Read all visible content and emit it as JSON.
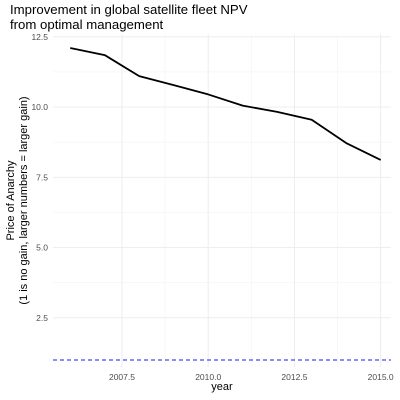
{
  "chart_data": {
    "type": "line",
    "title_lines": [
      "Improvement in global satellite fleet NPV",
      "from optimal management"
    ],
    "xlabel": "year",
    "ylabel_lines": [
      "Price of Anarchy",
      "(1 is no gain, larger numbers = larger gain)"
    ],
    "xlim": [
      2005.5,
      2015.3
    ],
    "ylim": [
      0.75,
      12.6
    ],
    "x_ticks": [
      2007.5,
      2010.0,
      2012.5,
      2015.0
    ],
    "x_tick_labels": [
      "2007.5",
      "2010.0",
      "2012.5",
      "2015.0"
    ],
    "y_ticks": [
      2.5,
      5.0,
      7.5,
      10.0,
      12.5
    ],
    "y_tick_labels": [
      "2.5",
      "5.0",
      "7.5",
      "10.0",
      "12.5"
    ],
    "grid": true,
    "series": [
      {
        "x": [
          2006,
          2007,
          2008,
          2009,
          2010,
          2011,
          2012,
          2013,
          2014,
          2015
        ],
        "values": [
          12.1,
          11.85,
          11.1,
          10.78,
          10.45,
          10.05,
          9.83,
          9.55,
          8.72,
          8.12
        ],
        "color": "#000000"
      }
    ],
    "reference_line": {
      "y": 1,
      "color": "#4a4aee",
      "style": "dashed"
    }
  }
}
